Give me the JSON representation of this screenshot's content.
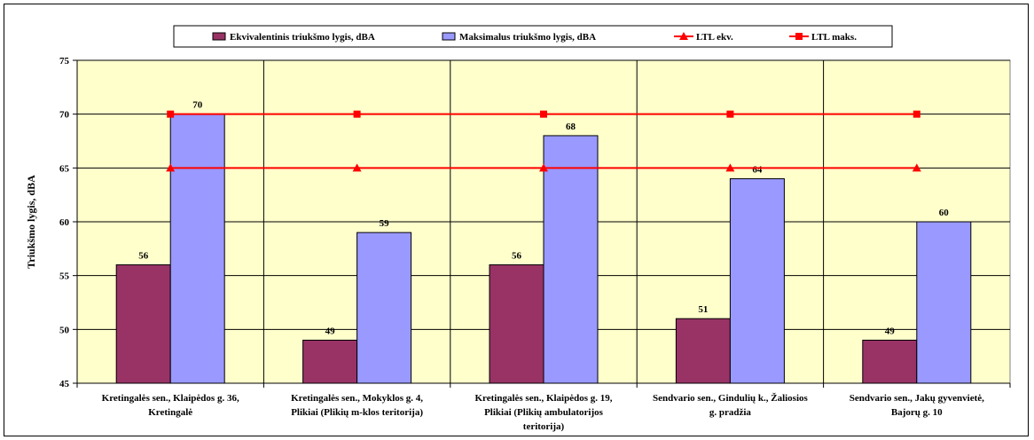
{
  "chart_data": {
    "type": "bar",
    "title": "",
    "xlabel": "",
    "ylabel": "Triukšmo lygis, dBA",
    "ylim": [
      45,
      75
    ],
    "yticks": [
      45,
      50,
      55,
      60,
      65,
      70,
      75
    ],
    "grid": true,
    "legend_position": "top",
    "plot_background": "#ffffcc",
    "categories": [
      [
        "Kretingalės sen., Klaipėdos g. 36,",
        "Kretingalė"
      ],
      [
        "Kretingalės sen., Mokyklos g. 4,",
        "Plikiai (Plikių m-klos teritorija)"
      ],
      [
        "Kretingalės sen., Klaipėdos g. 19,",
        "Plikiai (Plikių ambulatorijos",
        "teritorija)"
      ],
      [
        "Sendvario sen., Gindulių k., Žaliosios",
        "g. pradžia"
      ],
      [
        "Sendvario sen., Jakų gyvenvietė,",
        "Bajorų g. 10"
      ]
    ],
    "series": [
      {
        "name": "Ekvivalentinis triukšmo lygis, dBA",
        "kind": "bar",
        "color": "#993366",
        "values": [
          56,
          49,
          56,
          51,
          49
        ]
      },
      {
        "name": "Maksimalus triukšmo lygis, dBA",
        "kind": "bar",
        "color": "#9999ff",
        "values": [
          70,
          59,
          68,
          64,
          60
        ]
      },
      {
        "name": "LTL ekv.",
        "kind": "line",
        "marker": "triangle",
        "color": "#ff0000",
        "values": [
          65,
          65,
          65,
          65,
          65
        ]
      },
      {
        "name": "LTL maks.",
        "kind": "line",
        "marker": "square",
        "color": "#ff0000",
        "values": [
          70,
          70,
          70,
          70,
          70
        ]
      }
    ]
  }
}
